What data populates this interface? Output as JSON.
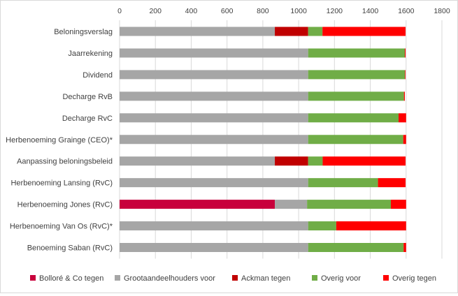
{
  "chart_data": {
    "type": "bar",
    "orientation": "horizontal",
    "stacked": true,
    "title": "",
    "xlabel": "",
    "ylabel": "",
    "xlim": [
      0,
      1800
    ],
    "x_ticks": [
      "0",
      "200",
      "400",
      "600",
      "800",
      "1000",
      "1200",
      "1400",
      "1600",
      "1800"
    ],
    "x_axis_position": "top",
    "grid": "vertical",
    "legend_position": "bottom",
    "categories": [
      "Beloningsverslag",
      "Jaarrekening",
      "Dividend",
      "Decharge RvB",
      "Decharge RvC",
      "Herbenoeming Grainge (CEO)*",
      "Aanpassing beloningsbeleid",
      "Herbenoeming Lansing (RvC)",
      "Herbenoeming Jones (RvC)",
      "Herbenoeming Van Os (RvC)*",
      "Benoeming Saban (RvC)"
    ],
    "series": [
      {
        "name": "Bolloré & Co tegen",
        "color": "#c8003c",
        "values": [
          0,
          0,
          0,
          0,
          0,
          0,
          0,
          0,
          867,
          0,
          0
        ]
      },
      {
        "name": "Grootaandeelhouders voor",
        "color": "#a6a6a6",
        "values": [
          867,
          1053,
          1053,
          1053,
          1053,
          1053,
          867,
          1053,
          180,
          1053,
          1053
        ]
      },
      {
        "name": "Ackman tegen",
        "color": "#c00000",
        "values": [
          186,
          0,
          0,
          0,
          0,
          0,
          186,
          0,
          0,
          0,
          0
        ]
      },
      {
        "name": "Overig voor",
        "color": "#70ad47",
        "values": [
          80,
          540,
          541,
          535,
          505,
          531,
          81,
          390,
          468,
          157,
          533
        ]
      },
      {
        "name": "Overig tegen",
        "color": "#ff0000",
        "values": [
          464,
          4,
          3,
          5,
          42,
          16,
          463,
          154,
          85,
          390,
          14
        ]
      }
    ]
  }
}
